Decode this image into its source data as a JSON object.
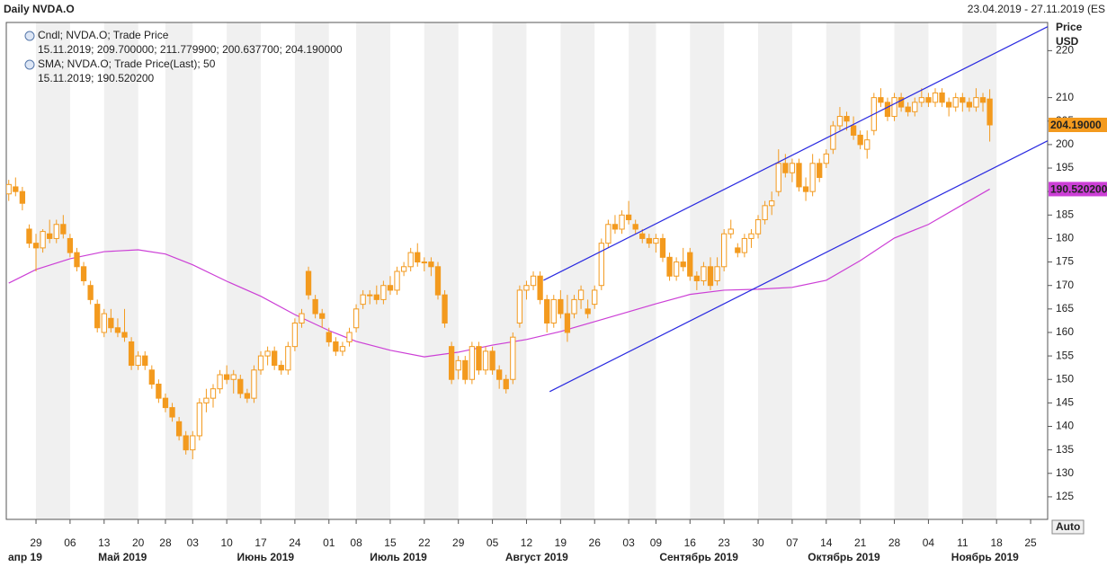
{
  "chart_data": {
    "type": "candlestick",
    "title": "Daily NVDA.O",
    "date_range": "23.04.2019 - 27.11.2019 (ES",
    "y_axis_label": [
      "Price",
      "USD"
    ],
    "button": "Auto",
    "xlim": [
      -0.36,
      152.5
    ],
    "ylim": [
      120.2,
      226
    ],
    "yticks": [
      125,
      130,
      135,
      140,
      145,
      150,
      155,
      160,
      165,
      170,
      175,
      180,
      185,
      190,
      195,
      200,
      205,
      210,
      220
    ],
    "xticks": [
      {
        "value": 4,
        "label": "29"
      },
      {
        "value": 9,
        "label": "06"
      },
      {
        "value": 14,
        "label": "13"
      },
      {
        "value": 19,
        "label": "20"
      },
      {
        "value": 23,
        "label": "28"
      },
      {
        "value": 27,
        "label": "03"
      },
      {
        "value": 32,
        "label": "10"
      },
      {
        "value": 37,
        "label": "17"
      },
      {
        "value": 42,
        "label": "24"
      },
      {
        "value": 47,
        "label": "01"
      },
      {
        "value": 51,
        "label": "08"
      },
      {
        "value": 56,
        "label": "15"
      },
      {
        "value": 61,
        "label": "22"
      },
      {
        "value": 66,
        "label": "29"
      },
      {
        "value": 71,
        "label": "05"
      },
      {
        "value": 76,
        "label": "12"
      },
      {
        "value": 81,
        "label": "19"
      },
      {
        "value": 86,
        "label": "26"
      },
      {
        "value": 91,
        "label": "03"
      },
      {
        "value": 95,
        "label": "09"
      },
      {
        "value": 100,
        "label": "16"
      },
      {
        "value": 105,
        "label": "23"
      },
      {
        "value": 110,
        "label": "30"
      },
      {
        "value": 115,
        "label": "07"
      },
      {
        "value": 120,
        "label": "14"
      },
      {
        "value": 125,
        "label": "21"
      },
      {
        "value": 130,
        "label": "28"
      },
      {
        "value": 135,
        "label": "04"
      },
      {
        "value": 140,
        "label": "11"
      },
      {
        "value": 145,
        "label": "18"
      },
      {
        "value": 150,
        "label": "25"
      }
    ],
    "month_ticks": [
      {
        "value": 2.4,
        "label": "апр 19"
      },
      {
        "value": 16.7,
        "label": "Май 2019"
      },
      {
        "value": 37.7,
        "label": "Июнь 2019"
      },
      {
        "value": 57.2,
        "label": "Июль 2019"
      },
      {
        "value": 77.5,
        "label": "Август 2019"
      },
      {
        "value": 101.3,
        "label": "Сентябрь 2019"
      },
      {
        "value": 122.6,
        "label": "Октябрь 2019"
      },
      {
        "value": 143.3,
        "label": "Ноябрь 2019"
      }
    ],
    "candles": {
      "name": "Cndl; NVDA.O; Trade Price",
      "legend_values": "15.11.2019; 209.700000; 211.779900; 200.637700; 204.190000",
      "color": "#f39a1e",
      "open": [
        189.5,
        191,
        190,
        182,
        179,
        178,
        181,
        180,
        183,
        180,
        177,
        174,
        170,
        166,
        160,
        163,
        161,
        160,
        158,
        153,
        155,
        152,
        149,
        146,
        144,
        141,
        138,
        135,
        138,
        145,
        146,
        148,
        151,
        150,
        150,
        147,
        146,
        152,
        155,
        156,
        153,
        152,
        157,
        162,
        173,
        167,
        164,
        160,
        158,
        156,
        158,
        161,
        166,
        168,
        168,
        167,
        170,
        169,
        173,
        174,
        177,
        175,
        175,
        174,
        168,
        157,
        152,
        154,
        150,
        157,
        152,
        156,
        152,
        150,
        150,
        162,
        169,
        170,
        172,
        167,
        162,
        167,
        164,
        164,
        167,
        165,
        166,
        170,
        179,
        183,
        182,
        185,
        183,
        181,
        180,
        179,
        180,
        176,
        172,
        175,
        177,
        172,
        171,
        174,
        171,
        174,
        181,
        178,
        177,
        180,
        181,
        184,
        187,
        190,
        196,
        194,
        196,
        191,
        190,
        196,
        196,
        199,
        204,
        206,
        204,
        202,
        199,
        203,
        210,
        209,
        206,
        210,
        208,
        207,
        209,
        210,
        209,
        211,
        209,
        208,
        210,
        209,
        208,
        210,
        209.7
      ],
      "high": [
        192.5,
        193,
        191,
        183,
        181,
        182,
        184,
        184,
        185,
        181,
        178,
        175,
        171,
        167,
        165,
        165,
        163,
        165,
        159,
        156,
        156,
        153,
        150,
        147,
        145,
        142,
        139,
        139,
        146,
        148,
        149,
        152,
        153,
        152,
        151,
        148,
        153,
        156,
        157,
        157,
        154,
        158,
        163,
        165,
        174,
        168,
        165,
        161,
        159,
        158,
        161,
        166,
        169,
        169,
        170,
        171,
        172,
        174,
        175,
        178,
        179,
        176,
        176,
        175,
        169,
        158,
        155,
        155,
        158,
        158,
        157,
        157,
        153,
        151,
        160,
        170,
        171,
        173,
        173,
        168,
        168,
        169,
        168,
        168,
        170,
        167,
        170,
        180,
        184,
        185,
        186,
        188,
        184,
        182,
        181,
        181,
        181,
        177,
        176,
        178,
        178,
        173,
        175,
        176,
        176,
        182,
        184,
        179,
        181,
        182,
        185,
        188,
        190,
        199,
        198,
        197,
        197,
        193,
        198,
        197,
        199,
        205,
        208,
        207,
        206,
        203,
        203,
        211,
        212,
        210,
        211,
        211,
        209,
        210,
        212,
        211,
        212,
        212,
        210,
        211,
        211,
        210,
        212,
        211,
        211.7799
      ],
      "low": [
        188,
        189,
        186,
        178,
        173,
        177,
        179,
        179,
        180,
        176,
        173,
        170,
        166,
        160,
        159,
        160,
        159,
        158,
        152,
        152,
        152,
        148,
        145,
        143,
        141,
        137,
        134,
        133,
        137,
        143,
        144,
        147,
        149,
        147,
        146,
        145,
        145,
        151,
        153,
        152,
        151,
        151,
        156,
        161,
        167,
        163,
        161,
        157,
        155,
        155,
        157,
        160,
        165,
        166,
        166,
        166,
        168,
        168,
        172,
        173,
        174,
        173,
        172,
        167,
        161,
        149,
        150,
        149,
        149,
        151,
        151,
        151,
        148,
        147,
        149,
        161,
        167,
        169,
        166,
        160,
        161,
        163,
        158,
        163,
        165,
        163,
        165,
        169,
        178,
        181,
        181,
        183,
        181,
        179,
        178,
        177,
        175,
        171,
        171,
        173,
        171,
        169,
        170,
        169,
        170,
        173,
        180,
        176,
        176,
        178,
        180,
        183,
        185,
        189,
        193,
        192,
        190,
        188,
        189,
        192,
        195,
        198,
        203,
        203,
        201,
        199,
        197,
        202,
        208,
        205,
        205,
        207,
        206,
        206,
        208,
        208,
        208,
        208,
        206,
        207,
        207,
        207,
        207,
        207,
        200.6377
      ],
      "close": [
        191.5,
        190,
        187.5,
        179,
        178,
        181.5,
        180,
        183,
        181,
        177,
        174,
        171,
        167,
        161,
        164,
        161,
        160,
        159,
        153,
        155,
        153,
        149,
        146,
        144,
        142,
        138,
        135,
        138,
        145,
        146,
        148,
        151,
        150,
        151,
        147,
        146,
        152,
        155,
        156,
        153,
        152,
        157,
        162,
        164,
        168,
        164,
        163,
        158,
        156,
        157,
        160,
        165,
        168,
        168,
        167,
        170,
        169,
        173,
        174,
        177,
        175,
        175,
        174,
        168,
        162,
        150,
        154,
        150,
        157,
        152,
        156,
        152,
        150,
        148,
        159,
        169,
        170,
        172,
        167,
        162,
        167,
        164,
        160,
        167,
        169,
        164,
        169,
        179,
        183,
        182,
        185,
        184,
        182,
        180,
        179,
        180,
        176,
        172,
        175,
        174,
        172,
        171,
        174,
        170,
        174,
        181,
        182,
        177,
        180,
        181,
        184,
        187,
        188,
        196,
        194,
        196,
        191,
        190,
        196,
        193,
        198,
        204,
        206,
        205,
        202,
        200,
        201,
        210,
        209,
        206,
        210,
        208,
        207,
        209,
        210,
        209,
        211,
        209,
        208,
        210,
        209,
        208,
        210,
        209,
        204.19
      ]
    },
    "sma": {
      "name": "SMA; NVDA.O; Trade Price(Last);  50",
      "legend_values": "15.11.2019; 190.520200",
      "color": "#cc3fd6",
      "x": [
        0,
        4,
        9,
        14,
        19,
        23,
        27,
        32,
        37,
        42,
        47,
        51,
        56,
        61,
        66,
        71,
        76,
        81,
        86,
        91,
        95,
        100,
        105,
        110,
        115,
        120,
        125,
        130,
        135,
        140,
        144
      ],
      "values": [
        170.5,
        173.4,
        175.7,
        177.2,
        177.6,
        176.7,
        174.4,
        170.9,
        167.7,
        163.8,
        160.4,
        158.1,
        156.2,
        154.8,
        155.8,
        157.3,
        158.5,
        160.2,
        162.3,
        164.4,
        166.1,
        168.1,
        169,
        169.2,
        169.6,
        171.1,
        175.3,
        180.1,
        183,
        187.2,
        190.5202
      ]
    },
    "trend_lines": {
      "color": "#2a2ae0",
      "lines": [
        {
          "x": [
            78.5,
            152.5
          ],
          "y": [
            171.1,
            225.1
          ]
        },
        {
          "x": [
            79.4,
            152.5
          ],
          "y": [
            147.4,
            200.8
          ]
        }
      ]
    },
    "last_labels": [
      {
        "value": 204.19,
        "label": "204.19000",
        "color": "#f39a1e"
      },
      {
        "value": 190.5202,
        "label": "190.520200",
        "color": "#cc3fd6"
      }
    ]
  }
}
